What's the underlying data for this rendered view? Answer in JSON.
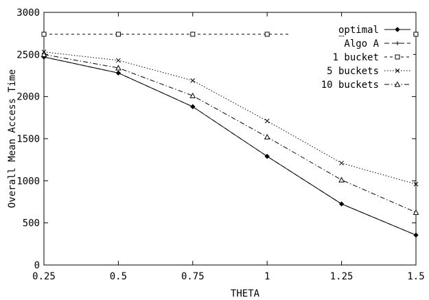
{
  "chart_data": {
    "type": "line",
    "title": "",
    "xlabel": "THETA",
    "ylabel": "Overall Mean Access Time",
    "x": [
      0.25,
      0.5,
      0.75,
      1,
      1.25,
      1.5
    ],
    "x_tick_labels": [
      "0.25",
      "0.5",
      "0.75",
      "1",
      "1.25",
      "1.5"
    ],
    "xlim": [
      0.25,
      1.5
    ],
    "ylim": [
      0,
      3000
    ],
    "y_ticks": [
      0,
      500,
      1000,
      1500,
      2000,
      2500,
      3000
    ],
    "y_tick_labels": [
      "0",
      "500",
      "1000",
      "1500",
      "2000",
      "2500",
      "3000"
    ],
    "grid": false,
    "legend_position": "top-right",
    "series": [
      {
        "name": "optimal",
        "marker": "diamond",
        "dash": "solid",
        "values": [
          2470,
          2280,
          1880,
          1290,
          725,
          355
        ]
      },
      {
        "name": "Algo A",
        "marker": "plus",
        "dash": "dashed",
        "values": [
          2470,
          2280,
          1880,
          1290,
          725,
          355
        ]
      },
      {
        "name": "1 bucket",
        "marker": "square",
        "dash": "short-dashed",
        "values": [
          2740,
          2740,
          2740,
          2740,
          2740,
          2740
        ]
      },
      {
        "name": "5 buckets",
        "marker": "cross",
        "dash": "dotted",
        "values": [
          2530,
          2430,
          2190,
          1710,
          1210,
          960
        ]
      },
      {
        "name": "10 buckets",
        "marker": "triangle",
        "dash": "dash-dot",
        "values": [
          2500,
          2340,
          2010,
          1520,
          1010,
          625
        ]
      }
    ]
  }
}
